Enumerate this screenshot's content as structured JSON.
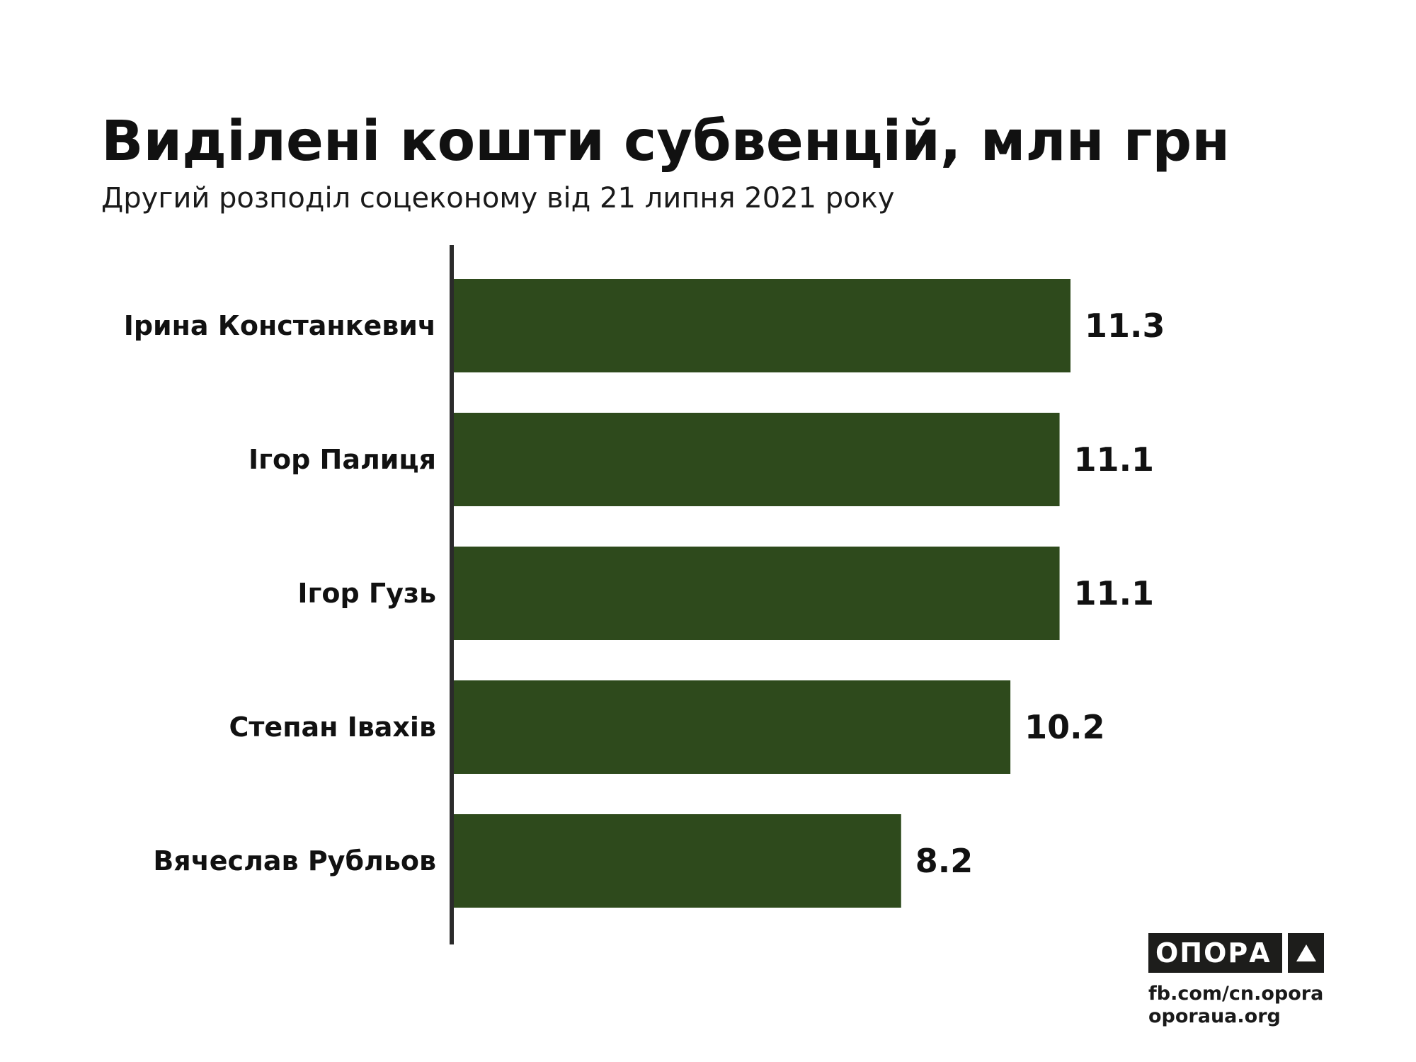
{
  "header": {
    "title": "Виділені кошти субвенцій, млн грн",
    "subtitle": "Другий розподіл соцеконому від 21 липня 2021 року"
  },
  "chart_data": {
    "type": "bar",
    "orientation": "horizontal",
    "title": "Виділені кошти субвенцій, млн грн",
    "subtitle": "Другий розподіл соцеконому від 21 липня 2021 року",
    "categories": [
      "Ірина Констанкевич",
      "Ігор Палиця",
      "Ігор Гузь",
      "Степан Івахів",
      "Вячеслав Рубльов"
    ],
    "values": [
      11.3,
      11.1,
      11.1,
      10.2,
      8.2
    ],
    "value_labels": [
      "11.3",
      "11.1",
      "11.1",
      "10.2",
      "8.2"
    ],
    "xlabel": "",
    "ylabel": "",
    "xlim": [
      0,
      11.3
    ],
    "grid": false,
    "legend": "none",
    "bar_color": "#2e4a1c",
    "axis_color": "#2b2b2b"
  },
  "branding": {
    "logo_text": "ОПОРА",
    "logo_icon": "triangle-icon",
    "links": [
      "fb.com/cn.opora",
      "oporaua.org"
    ]
  }
}
